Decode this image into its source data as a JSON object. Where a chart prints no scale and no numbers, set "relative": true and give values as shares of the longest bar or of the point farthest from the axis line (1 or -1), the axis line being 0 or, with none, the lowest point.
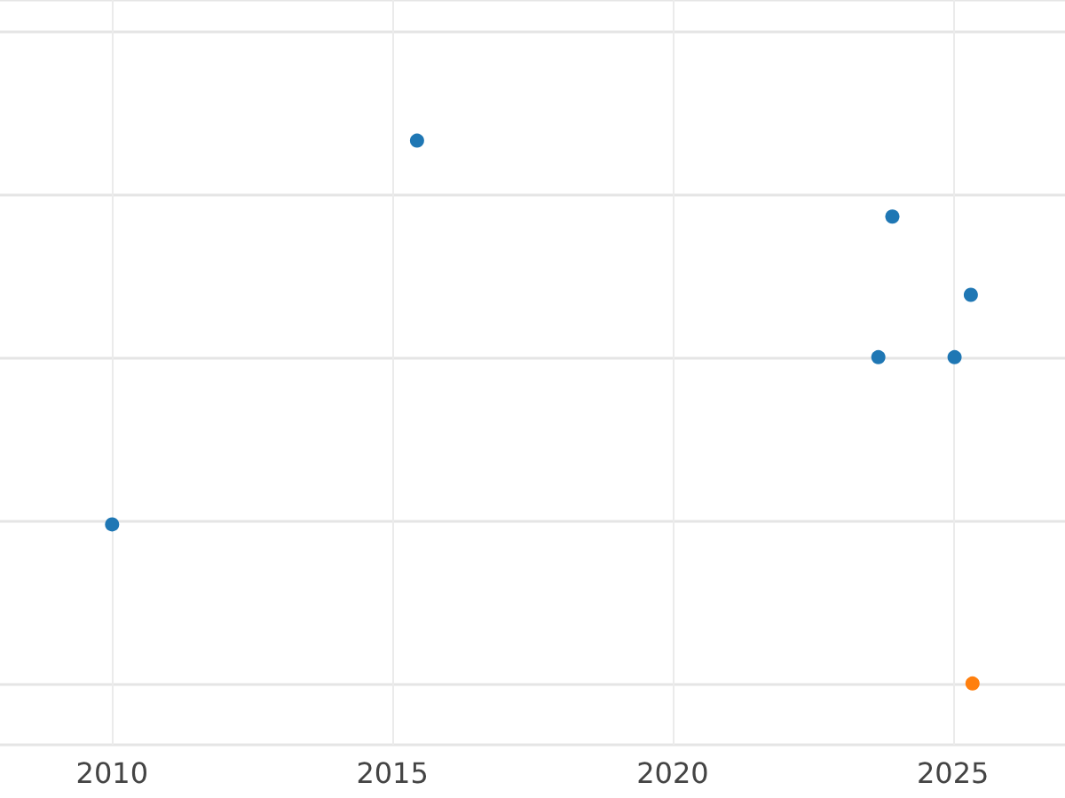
{
  "chart_data": {
    "type": "scatter",
    "relative": true,
    "grid": true,
    "marker": "circle",
    "xlim": [
      2008,
      2027
    ],
    "xticks": [
      2010,
      2015,
      2020,
      2025
    ],
    "series": [
      {
        "color": "#1f77b4",
        "x": [
          2010.0,
          2015.44,
          2023.92,
          2025.32,
          2023.67,
          2025.03
        ],
        "values": [
          0.293,
          1,
          0.86,
          0.716,
          0.601,
          0.601
        ]
      },
      {
        "color": "#ff7f0e",
        "x": [
          2025.35
        ],
        "values": [
          0
        ]
      }
    ]
  }
}
